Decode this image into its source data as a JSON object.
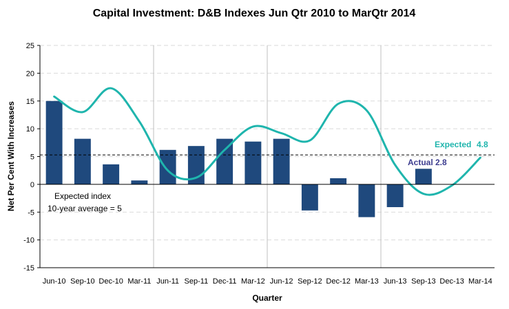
{
  "chart_data": {
    "type": "bar",
    "title": "Capital Investment: D&B Indexes Jun Qtr 2010 to MarQtr 2014",
    "xlabel": "Quarter",
    "ylabel": "Net Per Cent With Increases",
    "ylim": [
      -15,
      25
    ],
    "yticks": [
      25,
      20,
      15,
      10,
      5,
      0,
      -5,
      -10,
      -15
    ],
    "grid": true,
    "categories": [
      "Jun-10",
      "Sep-10",
      "Dec-10",
      "Mar-11",
      "Jun-11",
      "Sep-11",
      "Dec-11",
      "Mar-12",
      "Jun-12",
      "Sep-12",
      "Dec-12",
      "Mar-13",
      "Jun-13",
      "Sep-13",
      "Dec-13",
      "Mar-14"
    ],
    "series": [
      {
        "name": "Actual",
        "type": "bar",
        "color": "#1f497d",
        "values": [
          15.0,
          8.2,
          3.6,
          0.7,
          6.2,
          6.9,
          8.2,
          7.7,
          8.2,
          -4.7,
          1.1,
          -5.9,
          -4.1,
          2.8,
          null,
          null
        ]
      },
      {
        "name": "Expected",
        "type": "line",
        "color": "#1fb5ad",
        "smooth": true,
        "values": [
          15.8,
          13.0,
          17.3,
          11.3,
          2.5,
          1.2,
          6.2,
          10.4,
          9.2,
          7.9,
          14.5,
          13.3,
          3.5,
          -1.7,
          -0.2,
          4.8
        ]
      }
    ],
    "reference_line": {
      "name": "10-year average",
      "value": 5.3,
      "style": "dashed",
      "color": "#000000"
    },
    "annotations": {
      "expected_label": "Expected",
      "expected_value": "4.8",
      "expected_color": "#1fb5ad",
      "actual_label": "Actual",
      "actual_value": "2.8",
      "actual_color": "#3d3d8f",
      "avg_line1": "Expected index",
      "avg_line2": "10-year average = 5"
    },
    "colors": {
      "grid": "#d9d9d9",
      "vgrid": "#bfbfbf",
      "axis": "#000000"
    }
  }
}
